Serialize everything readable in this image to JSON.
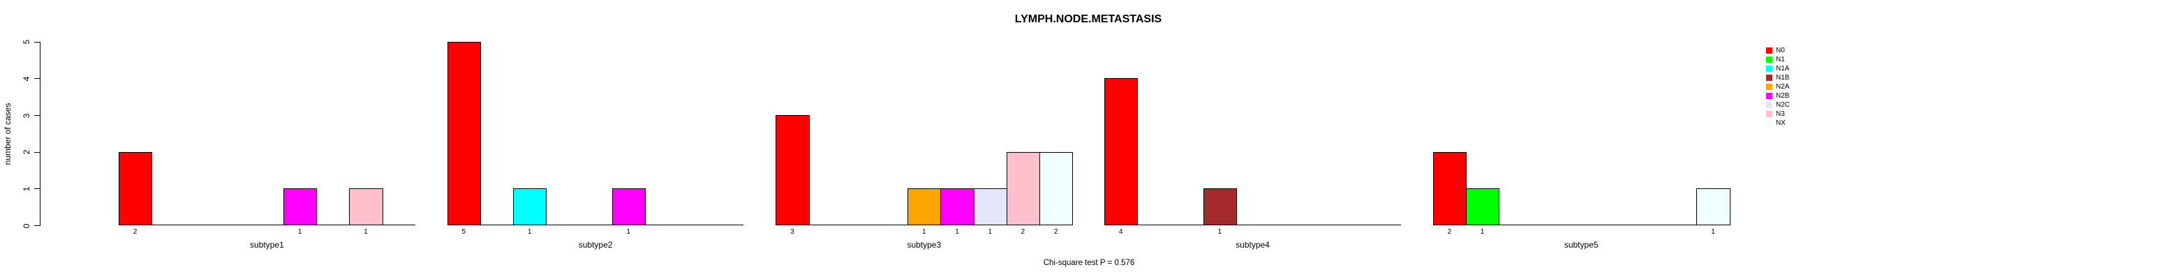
{
  "chart_data": {
    "type": "bar",
    "title": "LYMPH.NODE.METASTASIS",
    "ylabel": "number of cases",
    "annotation": "Chi-square test P = 0.576",
    "ylim": [
      0,
      5
    ],
    "yticks": [
      0,
      1,
      2,
      3,
      4,
      5
    ],
    "grid": "off",
    "legend_position": "right-outside",
    "categories": [
      "N0",
      "N1",
      "N1A",
      "N1B",
      "N2A",
      "N2B",
      "N2C",
      "N3",
      "NX"
    ],
    "colors": {
      "N0": "#ff0000",
      "N1": "#00ff00",
      "N1A": "#00ffff",
      "N1B": "#a52a2a",
      "N2A": "#ffa500",
      "N2B": "#ff00ff",
      "N2C": "#e6e6fa",
      "N3": "#ffc0cb",
      "NX": "#f0ffff"
    },
    "groups": [
      {
        "label": "subtype1",
        "values": [
          2,
          0,
          0,
          0,
          0,
          1,
          0,
          1,
          0
        ]
      },
      {
        "label": "subtype2",
        "values": [
          5,
          0,
          1,
          0,
          0,
          1,
          0,
          0,
          0
        ]
      },
      {
        "label": "subtype3",
        "values": [
          3,
          0,
          0,
          0,
          1,
          1,
          1,
          2,
          2
        ]
      },
      {
        "label": "subtype4",
        "values": [
          4,
          0,
          0,
          1,
          0,
          0,
          0,
          0,
          0
        ]
      },
      {
        "label": "subtype5",
        "values": [
          2,
          1,
          0,
          0,
          0,
          0,
          0,
          0,
          1
        ]
      }
    ],
    "bar_value_labels_shown": true,
    "axis_color": "#000000",
    "background_color": "#ffffff"
  }
}
